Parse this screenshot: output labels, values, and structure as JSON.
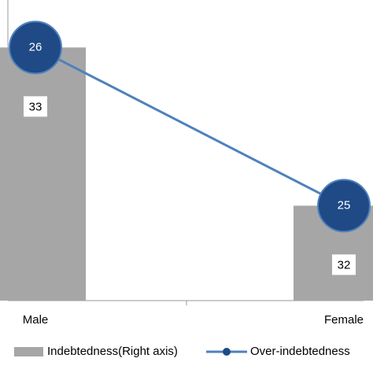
{
  "chart_data": {
    "type": "combo",
    "categories": [
      "Male",
      "Female"
    ],
    "series": [
      {
        "name": "Indebtedness(Right axis)",
        "type": "bar",
        "axis": "y2",
        "color": "#a6a6a6",
        "values": [
          33,
          32
        ]
      },
      {
        "name": "Over-indebtedness",
        "type": "line",
        "color": "#4f81bd",
        "marker_color": "#1f4a86",
        "values": [
          26,
          25
        ]
      }
    ],
    "ylim": [
      24.4,
      26.3
    ],
    "y2lim": [
      31.4,
      33.3
    ]
  }
}
